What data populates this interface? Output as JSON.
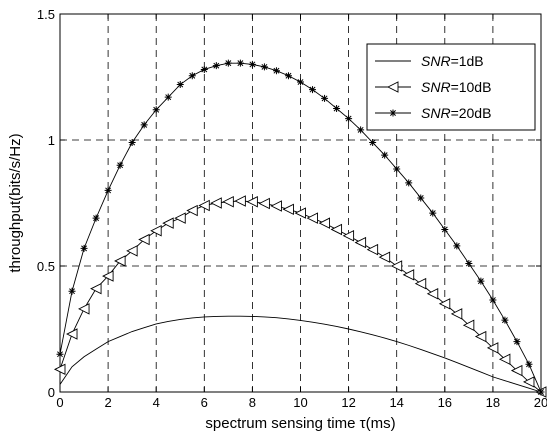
{
  "chart_data": {
    "type": "line",
    "title": "",
    "xlabel": "spectrum sensing time τ(ms)",
    "ylabel": "throughput(bits/s/Hz)",
    "xlim": [
      0,
      20
    ],
    "ylim": [
      0,
      1.5
    ],
    "xticks": [
      0,
      2,
      4,
      6,
      8,
      10,
      12,
      14,
      16,
      18,
      20
    ],
    "yticks": [
      0,
      0.5,
      1,
      1.5
    ],
    "xtick_labels": [
      "0",
      "2",
      "4",
      "6",
      "8",
      "10",
      "12",
      "14",
      "16",
      "18",
      "20"
    ],
    "ytick_labels": [
      "0",
      "0.5",
      "1",
      "1.5"
    ],
    "grid": true,
    "legend_position": "top-right",
    "x": [
      0,
      0.5,
      1,
      1.5,
      2,
      2.5,
      3,
      3.5,
      4,
      4.5,
      5,
      5.5,
      6,
      6.5,
      7,
      7.5,
      8,
      8.5,
      9,
      9.5,
      10,
      10.5,
      11,
      11.5,
      12,
      12.5,
      13,
      13.5,
      14,
      14.5,
      15,
      15.5,
      16,
      16.5,
      17,
      17.5,
      18,
      18.5,
      19,
      19.5,
      20
    ],
    "series": [
      {
        "name": "SNR=1dB",
        "name_italic": "SNR",
        "name_rest": "=1dB",
        "marker": "none",
        "values": [
          0.03,
          0.1,
          0.14,
          0.17,
          0.2,
          0.22,
          0.24,
          0.255,
          0.27,
          0.28,
          0.288,
          0.294,
          0.298,
          0.3,
          0.301,
          0.301,
          0.3,
          0.298,
          0.295,
          0.29,
          0.284,
          0.277,
          0.269,
          0.26,
          0.25,
          0.239,
          0.227,
          0.214,
          0.2,
          0.185,
          0.169,
          0.152,
          0.135,
          0.117,
          0.098,
          0.079,
          0.06,
          0.045,
          0.03,
          0.015,
          0.0
        ]
      },
      {
        "name": "SNR=10dB",
        "name_italic": "SNR",
        "name_rest": "=10dB",
        "marker": "triangle-left",
        "values": [
          0.09,
          0.23,
          0.33,
          0.41,
          0.46,
          0.52,
          0.56,
          0.605,
          0.64,
          0.67,
          0.69,
          0.72,
          0.74,
          0.75,
          0.755,
          0.758,
          0.755,
          0.748,
          0.738,
          0.725,
          0.71,
          0.69,
          0.67,
          0.645,
          0.62,
          0.593,
          0.565,
          0.535,
          0.5,
          0.465,
          0.43,
          0.39,
          0.35,
          0.31,
          0.265,
          0.22,
          0.175,
          0.13,
          0.085,
          0.04,
          0.0
        ]
      },
      {
        "name": "SNR=20dB",
        "name_italic": "SNR",
        "name_rest": "=20dB",
        "marker": "star",
        "values": [
          0.15,
          0.4,
          0.57,
          0.69,
          0.8,
          0.9,
          0.99,
          1.06,
          1.12,
          1.17,
          1.22,
          1.255,
          1.28,
          1.295,
          1.305,
          1.305,
          1.3,
          1.29,
          1.275,
          1.255,
          1.23,
          1.2,
          1.165,
          1.125,
          1.085,
          1.04,
          0.99,
          0.94,
          0.885,
          0.83,
          0.77,
          0.71,
          0.645,
          0.58,
          0.51,
          0.44,
          0.365,
          0.285,
          0.2,
          0.11,
          0.0
        ]
      }
    ]
  }
}
